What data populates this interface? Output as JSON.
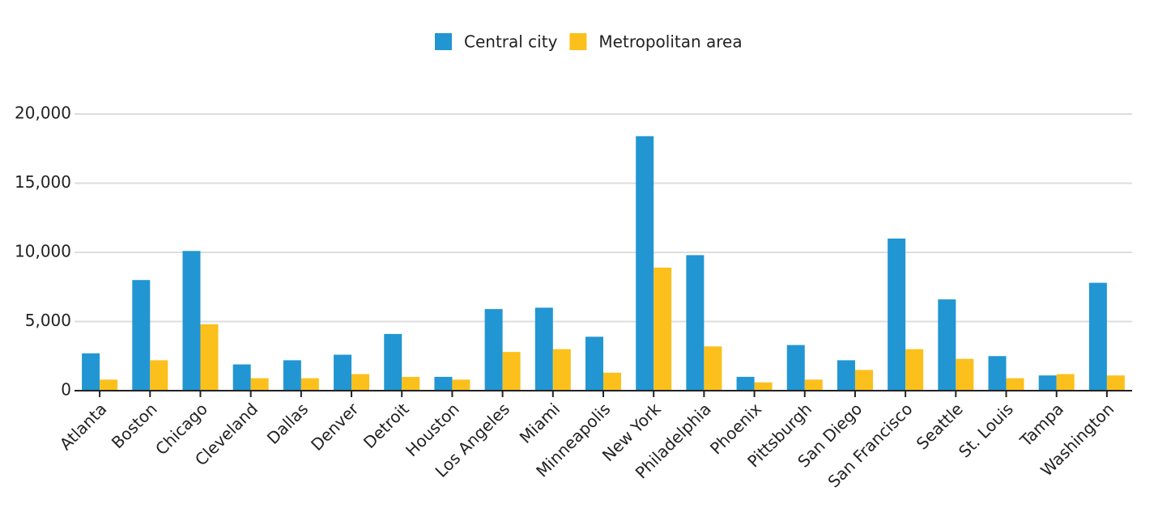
{
  "chart_data": {
    "type": "bar",
    "categories": [
      "Atlanta",
      "Boston",
      "Chicago",
      "Cleveland",
      "Dallas",
      "Denver",
      "Detroit",
      "Houston",
      "Los Angeles",
      "Miami",
      "Minneapolis",
      "New York",
      "Philadelphia",
      "Phoenix",
      "Pittsburgh",
      "San Diego",
      "San Francisco",
      "Seattle",
      "St. Louis",
      "Tampa",
      "Washington"
    ],
    "series": [
      {
        "name": "Central city",
        "color": "#2196d3",
        "values": [
          2700,
          8000,
          10100,
          1900,
          2200,
          2600,
          4100,
          1000,
          5900,
          6000,
          3900,
          18400,
          9800,
          1000,
          3300,
          2200,
          11000,
          6600,
          2500,
          1100,
          7800
        ]
      },
      {
        "name": "Metropolitan area",
        "color": "#fbc01b",
        "values": [
          800,
          2200,
          4800,
          900,
          900,
          1200,
          1000,
          800,
          2800,
          3000,
          1300,
          8900,
          3200,
          600,
          800,
          1500,
          3000,
          2300,
          900,
          1200,
          1100
        ]
      }
    ],
    "ylim": [
      0,
      20000
    ],
    "yticks": [
      0,
      {
        "value": 5000,
        "label": "5,000"
      },
      {
        "value": 10000,
        "label": "10,000"
      },
      {
        "value": 15000,
        "label": "15,000"
      },
      {
        "value": 20000,
        "label": "20,000"
      }
    ],
    "grid": true
  }
}
